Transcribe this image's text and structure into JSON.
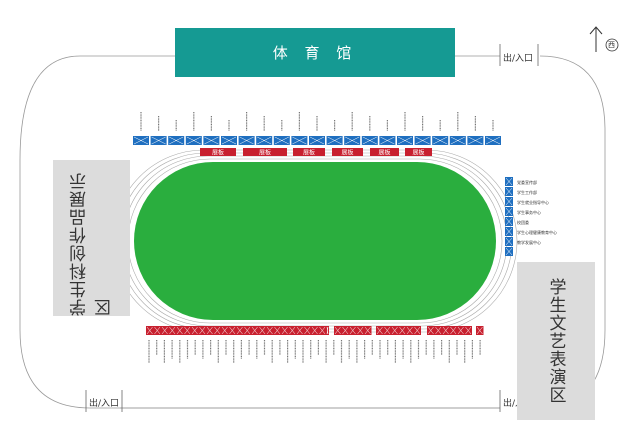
{
  "venue": {
    "building": "体 育 馆",
    "compass": "西"
  },
  "exits": [
    "出/入口",
    "出/入口",
    "出/入口"
  ],
  "zones": {
    "left": "学生科创作品展示区",
    "right": "学生文艺表演区"
  },
  "banner_label": "展板",
  "right_booths": [
    "党委宣传部",
    "学生工作部",
    "学生就业指导中心",
    "学生事务中心",
    "校团委",
    "学生心理健康教育中心",
    "教学发展中心"
  ],
  "colors": {
    "building": "#159a93",
    "field": "#2aae3e",
    "booth_blue": "#1f6fc0",
    "booth_red": "#c8202f",
    "zone": "#dcdcdc"
  }
}
